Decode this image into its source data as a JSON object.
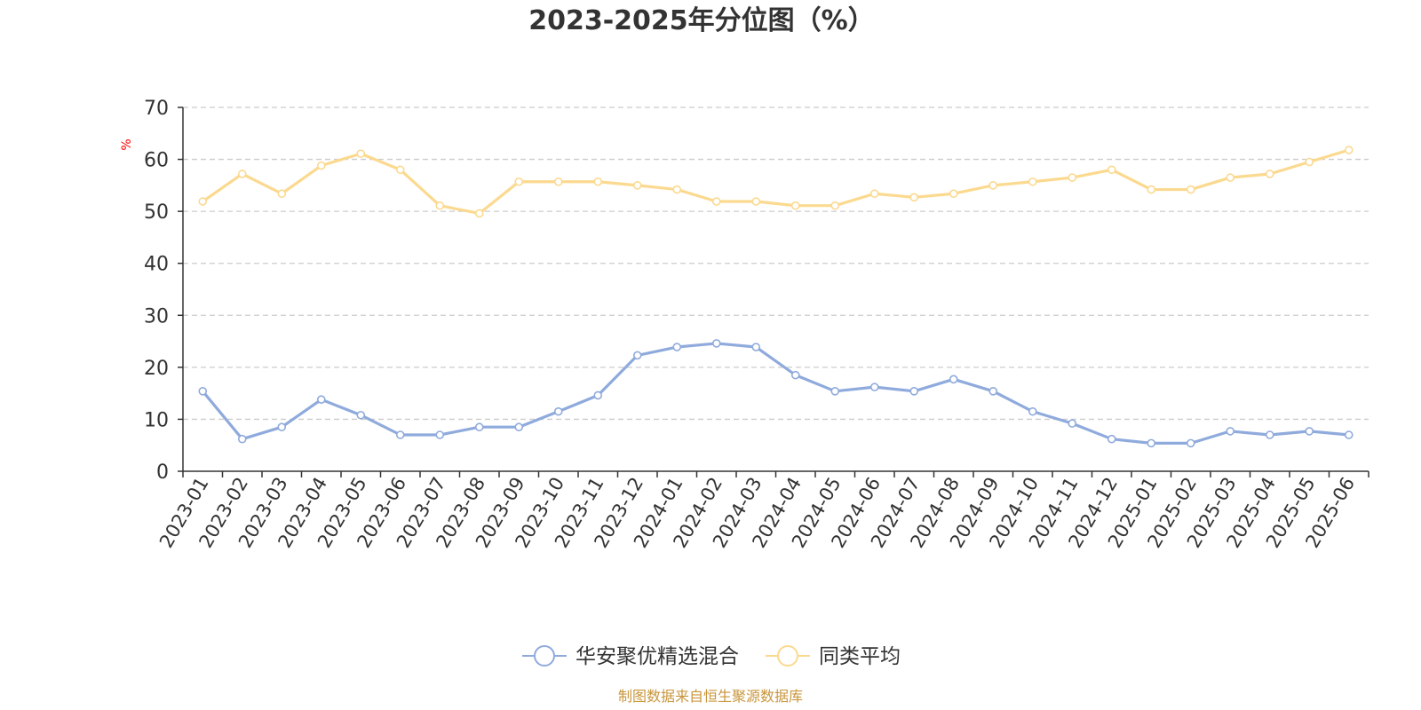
{
  "chart_data": {
    "type": "line",
    "title": "2023-2025年分位图（%）",
    "ylabel": "%",
    "ylim": [
      0,
      70
    ],
    "yticks": [
      0,
      10,
      20,
      30,
      40,
      50,
      60,
      70
    ],
    "grid": true,
    "legend_position": "bottom",
    "categories": [
      "2023-01",
      "2023-02",
      "2023-03",
      "2023-04",
      "2023-05",
      "2023-06",
      "2023-07",
      "2023-08",
      "2023-09",
      "2023-10",
      "2023-11",
      "2023-12",
      "2024-01",
      "2024-02",
      "2024-03",
      "2024-04",
      "2024-05",
      "2024-06",
      "2024-07",
      "2024-08",
      "2024-09",
      "2024-10",
      "2024-11",
      "2024-12",
      "2025-01",
      "2025-02",
      "2025-03",
      "2025-04",
      "2025-05",
      "2025-06"
    ],
    "series": [
      {
        "name": "华安聚优精选混合",
        "color": "#8faadc",
        "values": [
          15.4,
          6.2,
          8.5,
          13.8,
          10.8,
          7.0,
          7.0,
          8.5,
          8.5,
          11.5,
          14.6,
          22.3,
          23.9,
          24.6,
          23.9,
          18.5,
          15.4,
          16.2,
          15.4,
          17.7,
          15.4,
          11.5,
          9.2,
          6.2,
          5.4,
          5.4,
          7.7,
          7.0,
          7.7,
          7.0
        ]
      },
      {
        "name": "同类平均",
        "color": "#fbd98f",
        "values": [
          51.9,
          57.2,
          53.4,
          58.8,
          61.1,
          58.0,
          51.1,
          49.6,
          55.7,
          55.7,
          55.7,
          55.0,
          54.2,
          51.9,
          51.9,
          51.1,
          51.1,
          53.4,
          52.7,
          53.4,
          55.0,
          55.7,
          56.5,
          58.0,
          54.2,
          54.2,
          56.5,
          57.2,
          59.5,
          61.8
        ]
      }
    ]
  },
  "source_text": "制图数据来自恒生聚源数据库",
  "colors": {
    "unit_label": "#ff0000",
    "source_text": "#c8963c",
    "axis": "#333333",
    "grid": "#cccccc"
  }
}
